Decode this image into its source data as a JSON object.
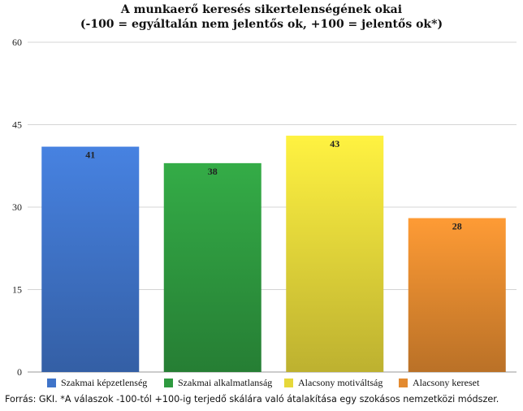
{
  "chart_data": {
    "type": "bar",
    "title": "A munkaerő keresés sikertelenségének okai",
    "subtitle": "(-100 = egyáltalán nem jelentős ok, +100 = jelentős ok*)",
    "categories": [
      "Szakmai képzetlenség",
      "Szakmai alkalmatlanság",
      "Alacsony motiváltság",
      "Alacsony kereset"
    ],
    "values": [
      41,
      38,
      43,
      28
    ],
    "data_labels": [
      "41",
      "38",
      "43",
      "28"
    ],
    "colors": [
      "#3f74c9",
      "#2e9a3f",
      "#e6d83a",
      "#e38a2f"
    ],
    "ylim": [
      0,
      60
    ],
    "yticks": [
      0,
      15,
      30,
      45,
      60
    ],
    "grid": true,
    "legend": "bottom",
    "source": "Forrás: GKI. *A válaszok -100-tól +100-ig terjedő skálára való átalakítása egy szokásos nemzetközi módszer."
  }
}
